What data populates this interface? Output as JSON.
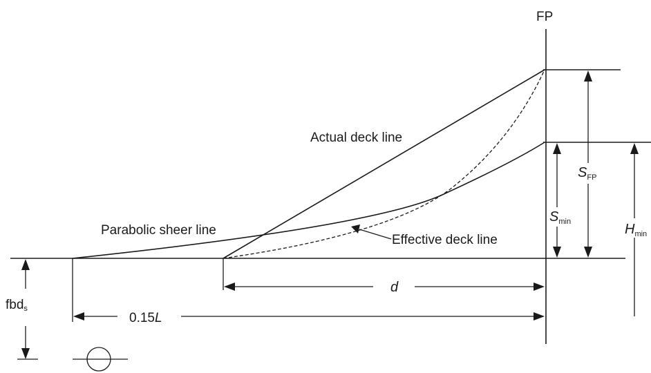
{
  "labels": {
    "fp": "FP",
    "actual_deck_line": "Actual deck line",
    "parabolic_sheer_line": "Parabolic sheer line",
    "effective_deck_line": "Effective deck line",
    "d": "d",
    "length_coeff": "0.15",
    "length_symbol": "L",
    "fbd_base": "fbd",
    "fbd_sub": "s",
    "s_fp_main": "S",
    "s_fp_sub": "FP",
    "s_min_main": "S",
    "s_min_sub": "min",
    "h_min_main": "H",
    "h_min_sub": "min"
  }
}
